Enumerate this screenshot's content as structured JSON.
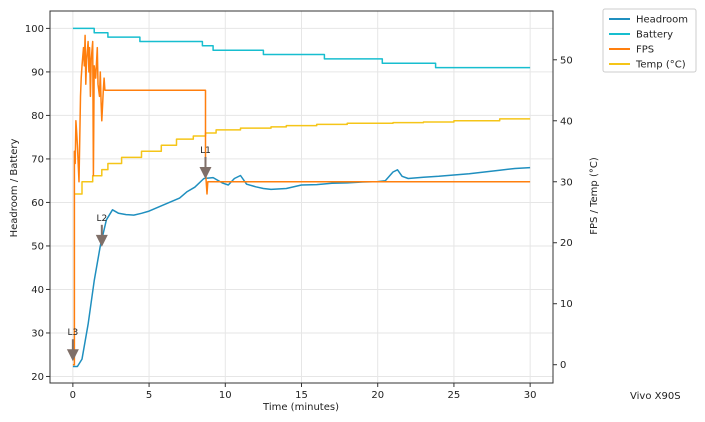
{
  "chart_data": {
    "type": "line",
    "title": "",
    "xlabel": "Time (minutes)",
    "ylabel_left": "Headroom / Battery",
    "ylabel_right": "FPS / Temp (°C)",
    "device_label": "Vivo X90S",
    "xlim": [
      -1.5,
      31.5
    ],
    "ylim_left": [
      18.5,
      104
    ],
    "ylim_right": [
      -3,
      58
    ],
    "x_ticks": [
      0,
      5,
      10,
      15,
      20,
      25,
      30
    ],
    "y_left_ticks": [
      20,
      30,
      40,
      50,
      60,
      70,
      80,
      90,
      100
    ],
    "y_right_ticks": [
      0,
      10,
      20,
      30,
      40,
      50
    ],
    "grid": true,
    "legend_position": "outside-top-right",
    "series": [
      {
        "name": "Headroom",
        "axis": "left",
        "color": "#1f8fbf",
        "points": [
          [
            0,
            22.3
          ],
          [
            0.3,
            22.3
          ],
          [
            0.6,
            24
          ],
          [
            1,
            32
          ],
          [
            1.4,
            42
          ],
          [
            1.8,
            50
          ],
          [
            2.2,
            56
          ],
          [
            2.6,
            58.3
          ],
          [
            3,
            57.5
          ],
          [
            3.5,
            57.2
          ],
          [
            4,
            57.1
          ],
          [
            4.5,
            57.5
          ],
          [
            5,
            58
          ],
          [
            6,
            59.5
          ],
          [
            7,
            61
          ],
          [
            7.5,
            62.5
          ],
          [
            8,
            63.5
          ],
          [
            8.6,
            65.5
          ],
          [
            9.2,
            65.7
          ],
          [
            9.8,
            64.5
          ],
          [
            10.2,
            64
          ],
          [
            10.6,
            65.5
          ],
          [
            11,
            66.2
          ],
          [
            11.4,
            64.2
          ],
          [
            12,
            63.6
          ],
          [
            12.5,
            63.2
          ],
          [
            13,
            63
          ],
          [
            14,
            63.2
          ],
          [
            15,
            64
          ],
          [
            16,
            64.1
          ],
          [
            17,
            64.4
          ],
          [
            18,
            64.5
          ],
          [
            19,
            64.7
          ],
          [
            20,
            64.8
          ],
          [
            20.5,
            65
          ],
          [
            21,
            67
          ],
          [
            21.3,
            67.5
          ],
          [
            21.6,
            66
          ],
          [
            22,
            65.5
          ],
          [
            23,
            65.8
          ],
          [
            24,
            66
          ],
          [
            25,
            66.3
          ],
          [
            26,
            66.6
          ],
          [
            27,
            67
          ],
          [
            28,
            67.4
          ],
          [
            29,
            67.8
          ],
          [
            30,
            68
          ]
        ]
      },
      {
        "name": "Battery",
        "axis": "left",
        "color": "#17becf",
        "points": [
          [
            0,
            100
          ],
          [
            1.4,
            100
          ],
          [
            1.4,
            99
          ],
          [
            2.3,
            99
          ],
          [
            2.3,
            98
          ],
          [
            4.4,
            98
          ],
          [
            4.4,
            97
          ],
          [
            8.5,
            97
          ],
          [
            8.5,
            96
          ],
          [
            9.2,
            96
          ],
          [
            9.2,
            95
          ],
          [
            12.5,
            95
          ],
          [
            12.5,
            94
          ],
          [
            16.5,
            94
          ],
          [
            16.5,
            93
          ],
          [
            20.3,
            93
          ],
          [
            20.3,
            92
          ],
          [
            23.8,
            92
          ],
          [
            23.8,
            91
          ],
          [
            30,
            91
          ]
        ]
      },
      {
        "name": "FPS",
        "axis": "right",
        "color": "#ff7f0e",
        "points": [
          [
            0,
            0
          ],
          [
            0.1,
            0
          ],
          [
            0.1,
            35
          ],
          [
            0.15,
            33
          ],
          [
            0.2,
            40
          ],
          [
            0.25,
            38
          ],
          [
            0.3,
            36
          ],
          [
            0.4,
            30
          ],
          [
            0.5,
            44
          ],
          [
            0.55,
            47
          ],
          [
            0.6,
            49
          ],
          [
            0.7,
            52
          ],
          [
            0.75,
            49
          ],
          [
            0.8,
            54
          ],
          [
            0.85,
            46
          ],
          [
            0.9,
            50
          ],
          [
            1,
            53
          ],
          [
            1.05,
            48
          ],
          [
            1.1,
            52
          ],
          [
            1.15,
            44
          ],
          [
            1.2,
            50
          ],
          [
            1.3,
            53
          ],
          [
            1.35,
            31
          ],
          [
            1.4,
            49
          ],
          [
            1.5,
            47
          ],
          [
            1.6,
            52
          ],
          [
            1.65,
            46
          ],
          [
            1.75,
            44
          ],
          [
            1.8,
            48
          ],
          [
            1.85,
            43
          ],
          [
            1.9,
            40
          ],
          [
            2,
            45
          ],
          [
            2.05,
            47
          ],
          [
            2.1,
            45
          ],
          [
            8.7,
            45
          ],
          [
            8.7,
            32
          ],
          [
            8.75,
            30
          ],
          [
            8.8,
            28
          ],
          [
            8.85,
            30
          ],
          [
            30,
            30
          ]
        ]
      },
      {
        "name": "Temp (°C)",
        "axis": "right",
        "color": "#f5c518",
        "points": [
          [
            0.1,
            28
          ],
          [
            0.6,
            28
          ],
          [
            0.6,
            30
          ],
          [
            1.3,
            30
          ],
          [
            1.3,
            31
          ],
          [
            1.9,
            31
          ],
          [
            1.9,
            32
          ],
          [
            2.3,
            32
          ],
          [
            2.3,
            33
          ],
          [
            3.2,
            33
          ],
          [
            3.2,
            34
          ],
          [
            4.5,
            34
          ],
          [
            4.5,
            35
          ],
          [
            5.8,
            35
          ],
          [
            5.8,
            36
          ],
          [
            6.8,
            36
          ],
          [
            6.8,
            37
          ],
          [
            7.9,
            37
          ],
          [
            7.9,
            37.5
          ],
          [
            8.7,
            37.5
          ],
          [
            8.7,
            38
          ],
          [
            9.4,
            38
          ],
          [
            9.4,
            38.5
          ],
          [
            11,
            38.5
          ],
          [
            11,
            38.8
          ],
          [
            13,
            38.8
          ],
          [
            13,
            39
          ],
          [
            14,
            39
          ],
          [
            14,
            39.2
          ],
          [
            16,
            39.2
          ],
          [
            16,
            39.4
          ],
          [
            18,
            39.4
          ],
          [
            18,
            39.6
          ],
          [
            21,
            39.6
          ],
          [
            21,
            39.7
          ],
          [
            23,
            39.7
          ],
          [
            23,
            39.8
          ],
          [
            25,
            39.8
          ],
          [
            25,
            40
          ],
          [
            28,
            40
          ],
          [
            28,
            40.3
          ],
          [
            30,
            40.3
          ]
        ]
      }
    ],
    "annotations": [
      {
        "label": "L3",
        "x": 0,
        "y": 23.5
      },
      {
        "label": "L2",
        "x": 1.9,
        "y": 49.8
      },
      {
        "label": "L1",
        "x": 8.7,
        "y": 65.4
      }
    ]
  }
}
